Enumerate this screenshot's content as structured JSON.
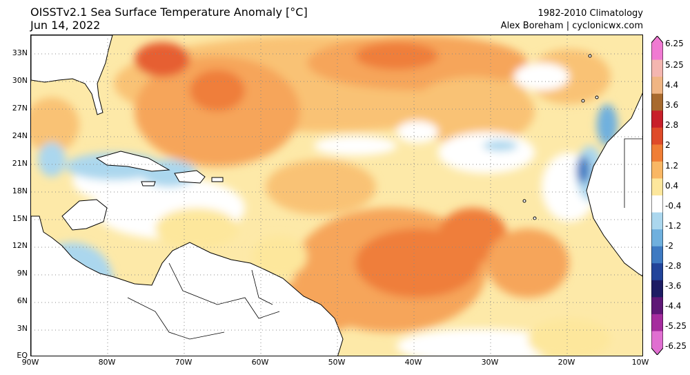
{
  "header": {
    "title_line1": "OISSTv2.1 Sea Surface Temperature Anomaly [°C]",
    "title_line2": "Jun 14, 2022",
    "climatology": "1982-2010 Climatology",
    "author": "Alex Boreham | cyclonicwx.com"
  },
  "map": {
    "lat_labels": [
      "33N",
      "30N",
      "27N",
      "24N",
      "21N",
      "18N",
      "15N",
      "12N",
      "9N",
      "6N",
      "3N",
      "EQ"
    ],
    "lon_labels": [
      "90W",
      "80W",
      "70W",
      "60W",
      "50W",
      "40W",
      "30W",
      "20W",
      "10W"
    ],
    "lat_range": [
      0,
      35
    ],
    "lon_range": [
      -90,
      -10
    ],
    "gridlines": "dotted"
  },
  "colorbar": {
    "labels": [
      "6.25",
      "5.25",
      "4.4",
      "3.6",
      "2.8",
      "2",
      "1.2",
      "0.4",
      "-0.4",
      "-1.2",
      "-2",
      "-2.8",
      "-3.6",
      "-4.4",
      "-5.25",
      "-6.25"
    ],
    "colors": [
      "#f07ad2",
      "#f4b6b0",
      "#f0b583",
      "#a86a2e",
      "#c8202a",
      "#df4b29",
      "#f07e35",
      "#f9b764",
      "#fde79c",
      "#ffffff",
      "#abd7ee",
      "#6fb0de",
      "#3e7ac2",
      "#22449a",
      "#1d1c63",
      "#5e1776",
      "#a52c9e",
      "#e06fd1"
    ]
  }
}
